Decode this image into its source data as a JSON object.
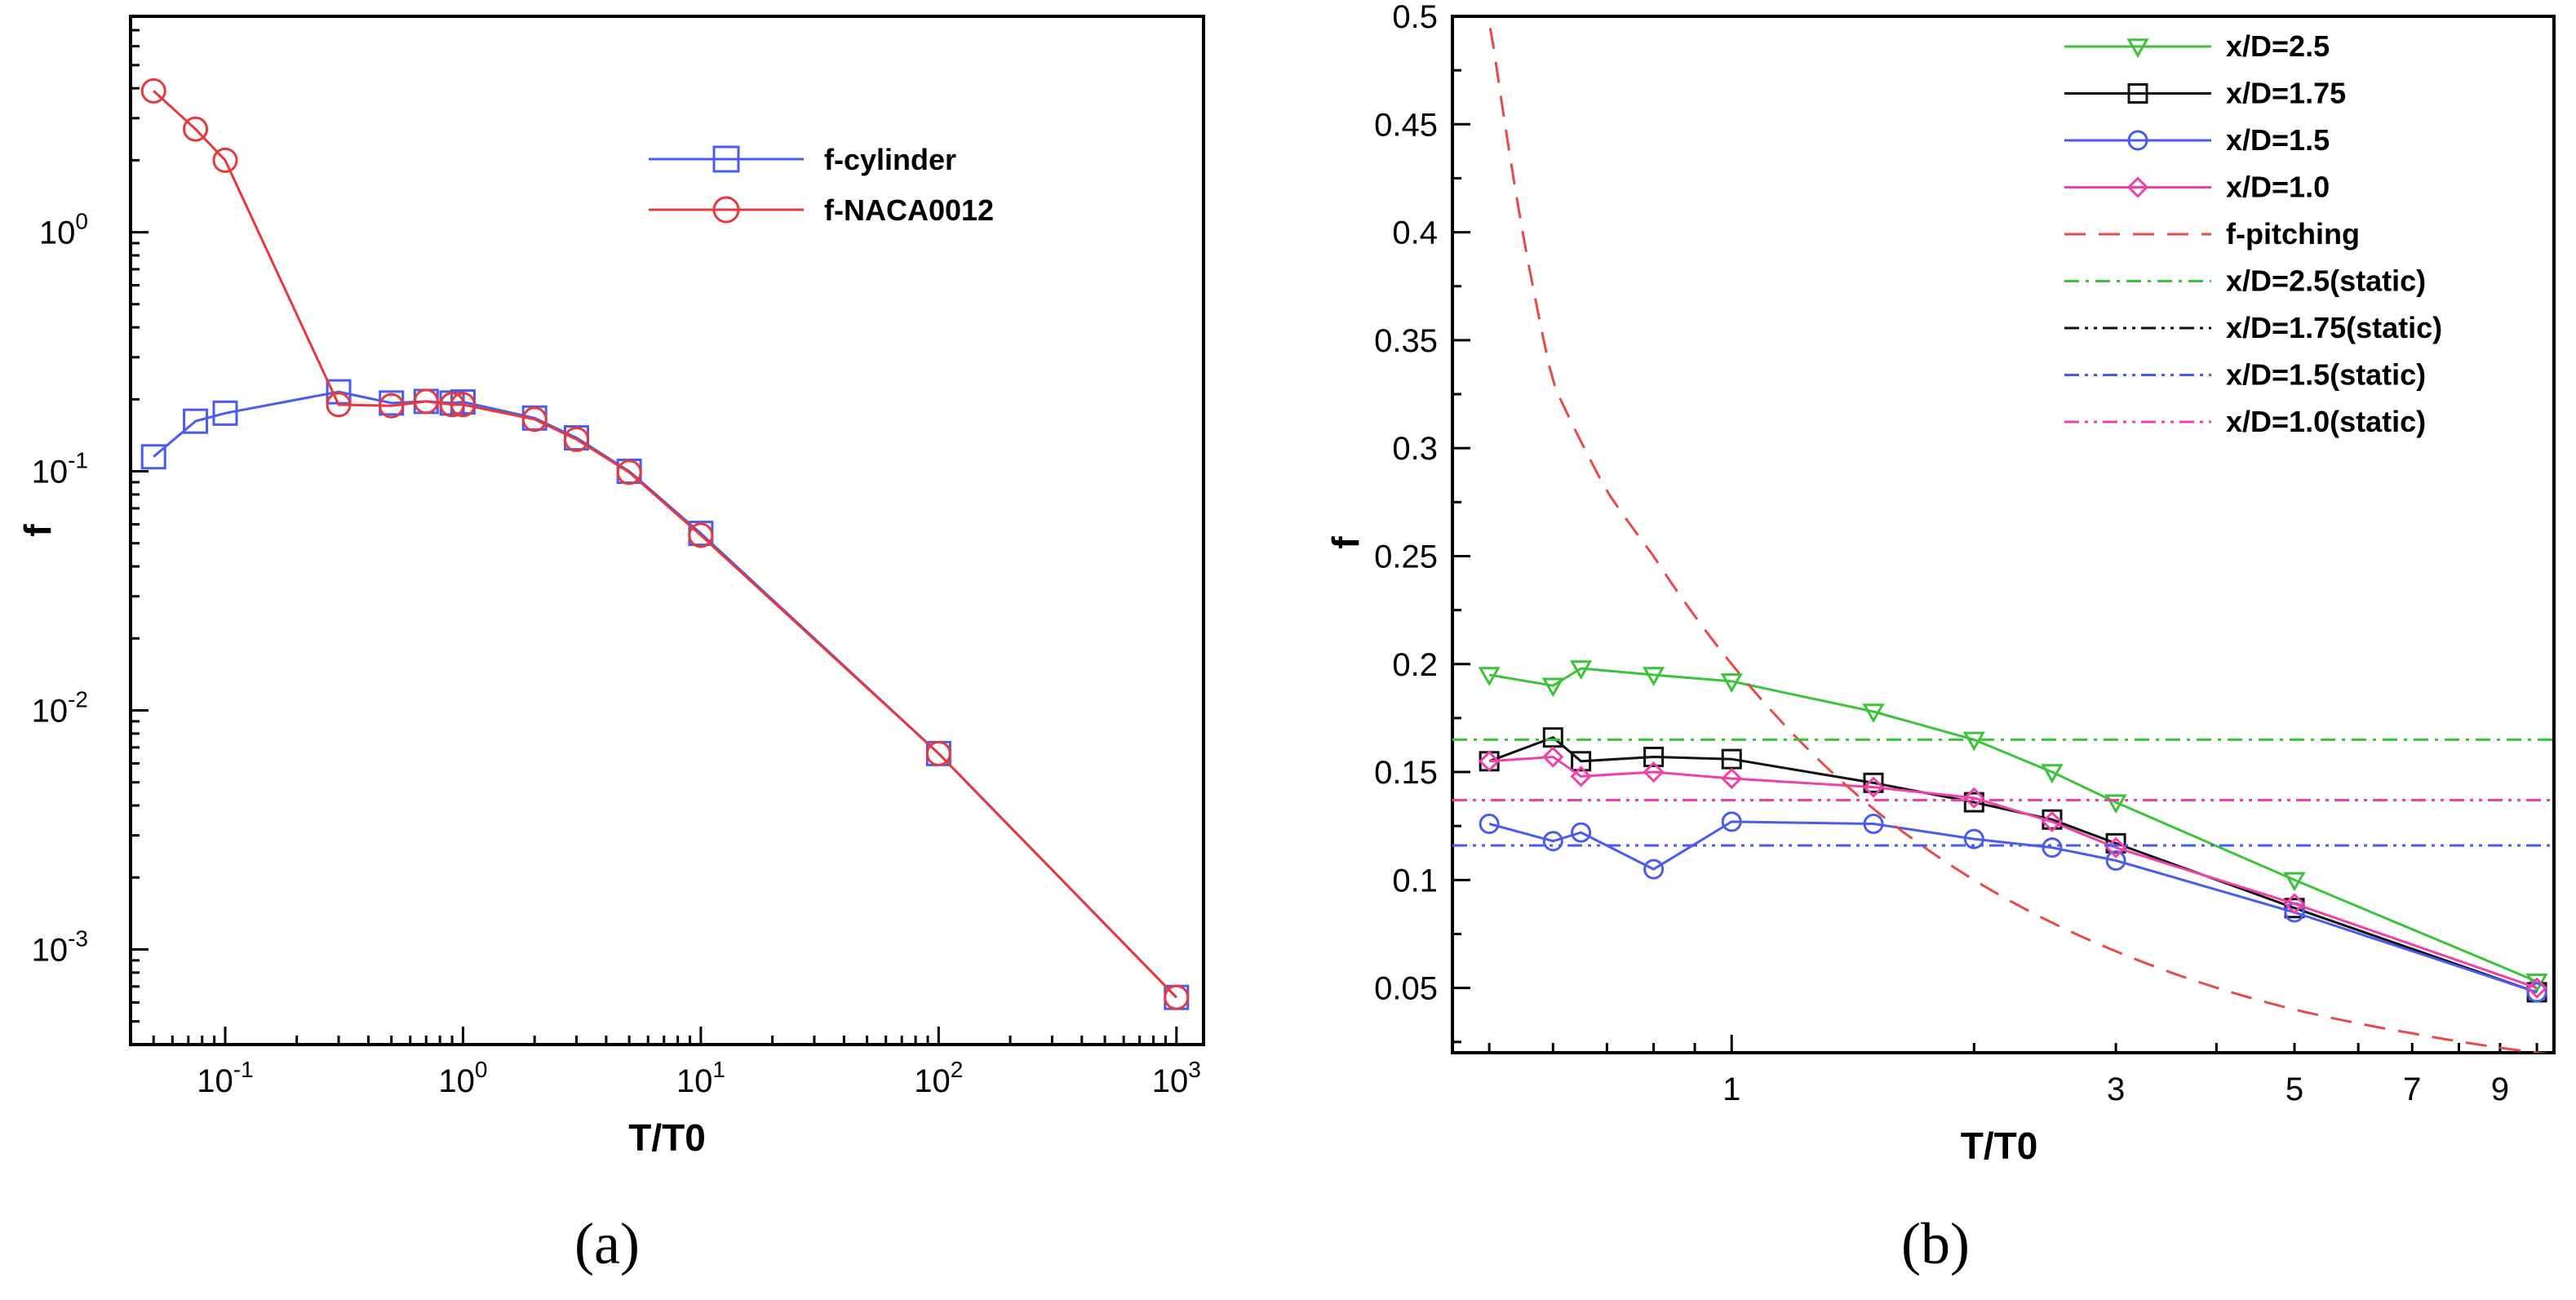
{
  "captions": {
    "a": "(a)",
    "b": "(b)"
  },
  "chart_data": [
    {
      "type": "line",
      "panel": "(a)",
      "xlabel": "T/T0",
      "ylabel": "f",
      "xscale": "log",
      "yscale": "log",
      "xlim": [
        0.04,
        1300
      ],
      "ylim": [
        0.0004,
        8
      ],
      "xticks": [
        {
          "value": 0.1,
          "mantissa": "10",
          "exp": "-1"
        },
        {
          "value": 1,
          "mantissa": "10",
          "exp": "0"
        },
        {
          "value": 10,
          "mantissa": "10",
          "exp": "1"
        },
        {
          "value": 100,
          "mantissa": "10",
          "exp": "2"
        },
        {
          "value": 1000,
          "mantissa": "10",
          "exp": "3"
        }
      ],
      "yticks": [
        {
          "value": 0.001,
          "mantissa": "10",
          "exp": "-3"
        },
        {
          "value": 0.01,
          "mantissa": "10",
          "exp": "-2"
        },
        {
          "value": 0.1,
          "mantissa": "10",
          "exp": "-1"
        },
        {
          "value": 1,
          "mantissa": "10",
          "exp": "0"
        }
      ],
      "legend_position": "top-right",
      "series": [
        {
          "name": "f-cylinder",
          "color": "#4a5cf0",
          "marker": "square",
          "x": [
            0.05,
            0.075,
            0.1,
            0.3,
            0.5,
            0.7,
            0.9,
            1.0,
            2,
            3,
            5,
            10,
            100,
            1000
          ],
          "y": [
            0.115,
            0.162,
            0.175,
            0.215,
            0.193,
            0.196,
            0.193,
            0.195,
            0.167,
            0.138,
            0.1,
            0.055,
            0.0066,
            0.00063
          ]
        },
        {
          "name": "f-NACA0012",
          "color": "#e8383d",
          "marker": "circle",
          "x": [
            0.05,
            0.075,
            0.1,
            0.3,
            0.5,
            0.7,
            0.9,
            1.0,
            2,
            3,
            5,
            10,
            100,
            1000
          ],
          "y": [
            3.9,
            2.7,
            2.0,
            0.19,
            0.188,
            0.196,
            0.19,
            0.19,
            0.165,
            0.136,
            0.099,
            0.054,
            0.0066,
            0.00063
          ]
        }
      ]
    },
    {
      "type": "line",
      "panel": "(b)",
      "xlabel": "T/T0",
      "ylabel": "f",
      "xscale": "log",
      "yscale": "linear",
      "xlim": [
        0.45,
        10.5
      ],
      "ylim": [
        0.02,
        0.5
      ],
      "xticks": [
        "1",
        "3",
        "5",
        "7",
        "9"
      ],
      "yticks": [
        "0.05",
        "0.1",
        "0.15",
        "0.2",
        "0.25",
        "0.3",
        "0.35",
        "0.4",
        "0.45",
        "0.5"
      ],
      "legend_position": "top-right",
      "series": [
        {
          "name": "x/D=2.5",
          "color": "#3ac43a",
          "marker": "triangle-down",
          "style": "solid",
          "x": [
            0.5,
            0.6,
            0.65,
            0.8,
            1.0,
            1.5,
            2.0,
            2.5,
            3.0,
            5.0,
            10.0
          ],
          "y": [
            0.195,
            0.19,
            0.198,
            0.195,
            0.192,
            0.178,
            0.165,
            0.15,
            0.136,
            0.1,
            0.053
          ]
        },
        {
          "name": "x/D=1.75",
          "color": "#111111",
          "marker": "square",
          "style": "solid",
          "x": [
            0.5,
            0.6,
            0.65,
            0.8,
            1.0,
            1.5,
            2.0,
            2.5,
            3.0,
            5.0,
            10.0
          ],
          "y": [
            0.155,
            0.166,
            0.155,
            0.157,
            0.156,
            0.145,
            0.136,
            0.128,
            0.117,
            0.087,
            0.048
          ]
        },
        {
          "name": "x/D=1.5",
          "color": "#4a5cf0",
          "marker": "circle",
          "style": "solid",
          "x": [
            0.5,
            0.6,
            0.65,
            0.8,
            1.0,
            1.5,
            2.0,
            2.5,
            3.0,
            5.0,
            10.0
          ],
          "y": [
            0.126,
            0.118,
            0.122,
            0.105,
            0.127,
            0.126,
            0.119,
            0.115,
            0.109,
            0.085,
            0.048
          ]
        },
        {
          "name": "x/D=1.0",
          "color": "#f040a8",
          "marker": "diamond",
          "style": "solid",
          "x": [
            0.5,
            0.6,
            0.65,
            0.8,
            1.0,
            1.5,
            2.0,
            2.5,
            3.0,
            5.0,
            10.0
          ],
          "y": [
            0.155,
            0.157,
            0.148,
            0.15,
            0.147,
            0.143,
            0.138,
            0.127,
            0.115,
            0.089,
            0.05
          ]
        },
        {
          "name": "f-pitching",
          "color": "#e84a4a",
          "marker": "none",
          "style": "dash",
          "x": [
            0.5,
            0.55,
            0.6,
            0.7,
            0.8,
            1.0,
            1.5,
            2.0,
            3.0,
            5.0,
            7.0,
            10.0
          ],
          "y": [
            0.5,
            0.4,
            0.33,
            0.28,
            0.25,
            0.2,
            0.133,
            0.1,
            0.067,
            0.04,
            0.029,
            0.02
          ]
        },
        {
          "name": "x/D=2.5(static)",
          "color": "#3ac43a",
          "marker": "none",
          "style": "dashdot",
          "constant": 0.165
        },
        {
          "name": "x/D=1.75(static)",
          "color": "#111111",
          "marker": "none",
          "style": "dashdotdot",
          "constant": 0.137
        },
        {
          "name": "x/D=1.5(static)",
          "color": "#4a5cf0",
          "marker": "none",
          "style": "dashdotdot",
          "constant": 0.116
        },
        {
          "name": "x/D=1.0(static)",
          "color": "#f040a8",
          "marker": "none",
          "style": "dashdotdot",
          "constant": 0.137
        }
      ]
    }
  ]
}
